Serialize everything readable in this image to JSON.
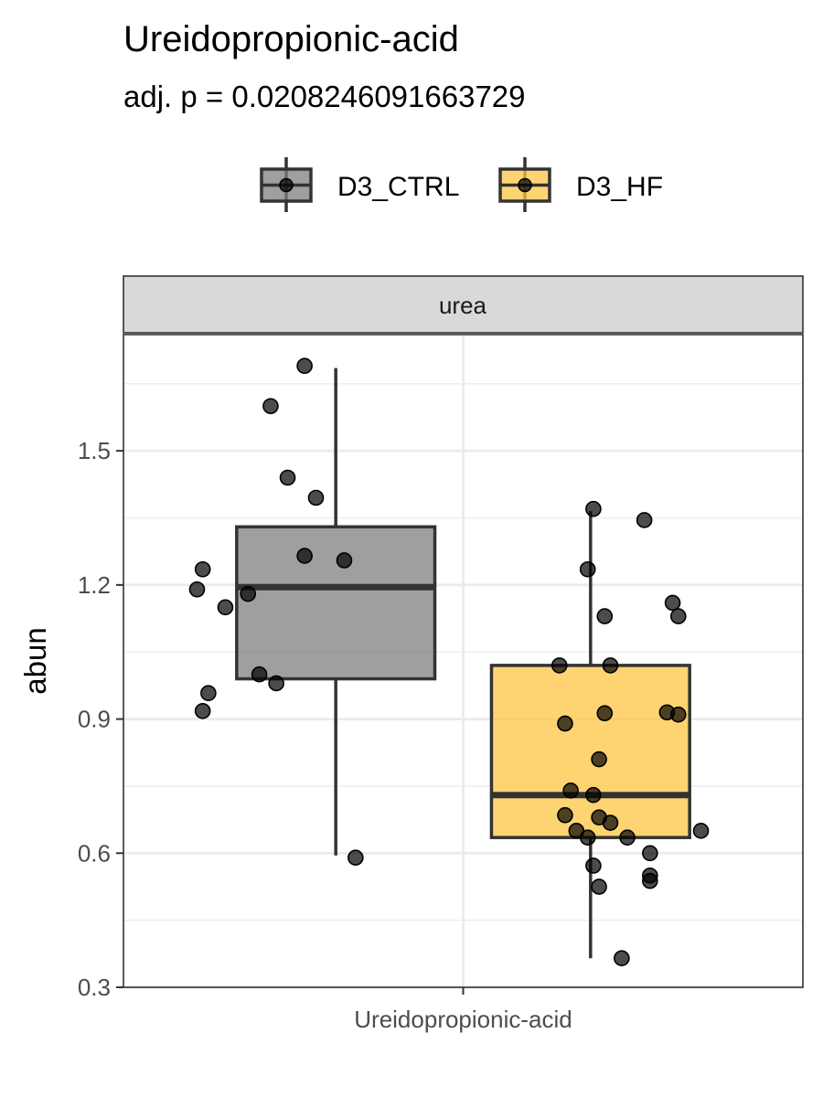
{
  "chart_data": {
    "type": "box",
    "title": "Ureidopropionic-acid",
    "subtitle": "adj. p = 0.0208246091663729",
    "facet_label": "urea",
    "xlabel": "",
    "ylabel": "abun",
    "x_tick_labels": [
      "Ureidopropionic-acid"
    ],
    "y_ticks": [
      0.3,
      0.6,
      0.9,
      1.2,
      1.5
    ],
    "y_tick_labels": [
      "0.3",
      "0.6",
      "0.9",
      "1.2",
      "1.5"
    ],
    "ylim": [
      0.3,
      1.76
    ],
    "grid": true,
    "legend_position": "top",
    "series": [
      {
        "name": "D3_CTRL",
        "color": "#7f7f7f",
        "box": {
          "whisker_low": 0.595,
          "q1": 0.99,
          "median": 1.195,
          "q3": 1.33,
          "whisker_high": 1.685
        },
        "points": [
          {
            "x": 0.72,
            "y": 1.69
          },
          {
            "x": 0.66,
            "y": 1.6
          },
          {
            "x": 0.69,
            "y": 1.44
          },
          {
            "x": 0.74,
            "y": 1.395
          },
          {
            "x": 0.72,
            "y": 1.265
          },
          {
            "x": 0.79,
            "y": 1.255
          },
          {
            "x": 0.54,
            "y": 1.235
          },
          {
            "x": 0.53,
            "y": 1.19
          },
          {
            "x": 0.62,
            "y": 1.18
          },
          {
            "x": 0.58,
            "y": 1.15
          },
          {
            "x": 0.64,
            "y": 1.0
          },
          {
            "x": 0.67,
            "y": 0.98
          },
          {
            "x": 0.55,
            "y": 0.958
          },
          {
            "x": 0.54,
            "y": 0.918
          },
          {
            "x": 0.81,
            "y": 0.59
          }
        ]
      },
      {
        "name": "D3_HF",
        "color": "#fdc543",
        "box": {
          "whisker_low": 0.365,
          "q1": 0.635,
          "median": 0.73,
          "q3": 1.02,
          "whisker_high": 1.365
        },
        "points": [
          {
            "x": 1.23,
            "y": 1.37
          },
          {
            "x": 1.32,
            "y": 1.345
          },
          {
            "x": 1.22,
            "y": 1.235
          },
          {
            "x": 1.37,
            "y": 1.16
          },
          {
            "x": 1.38,
            "y": 1.13
          },
          {
            "x": 1.25,
            "y": 1.13
          },
          {
            "x": 1.17,
            "y": 1.02
          },
          {
            "x": 1.26,
            "y": 1.02
          },
          {
            "x": 1.36,
            "y": 0.915
          },
          {
            "x": 1.25,
            "y": 0.913
          },
          {
            "x": 1.38,
            "y": 0.91
          },
          {
            "x": 1.18,
            "y": 0.89
          },
          {
            "x": 1.24,
            "y": 0.81
          },
          {
            "x": 1.19,
            "y": 0.74
          },
          {
            "x": 1.23,
            "y": 0.73
          },
          {
            "x": 1.18,
            "y": 0.685
          },
          {
            "x": 1.24,
            "y": 0.68
          },
          {
            "x": 1.26,
            "y": 0.668
          },
          {
            "x": 1.2,
            "y": 0.65
          },
          {
            "x": 1.22,
            "y": 0.635
          },
          {
            "x": 1.29,
            "y": 0.635
          },
          {
            "x": 1.42,
            "y": 0.65
          },
          {
            "x": 1.33,
            "y": 0.6
          },
          {
            "x": 1.23,
            "y": 0.572
          },
          {
            "x": 1.33,
            "y": 0.55
          },
          {
            "x": 1.33,
            "y": 0.538
          },
          {
            "x": 1.24,
            "y": 0.525
          },
          {
            "x": 1.28,
            "y": 0.365
          }
        ]
      }
    ]
  }
}
